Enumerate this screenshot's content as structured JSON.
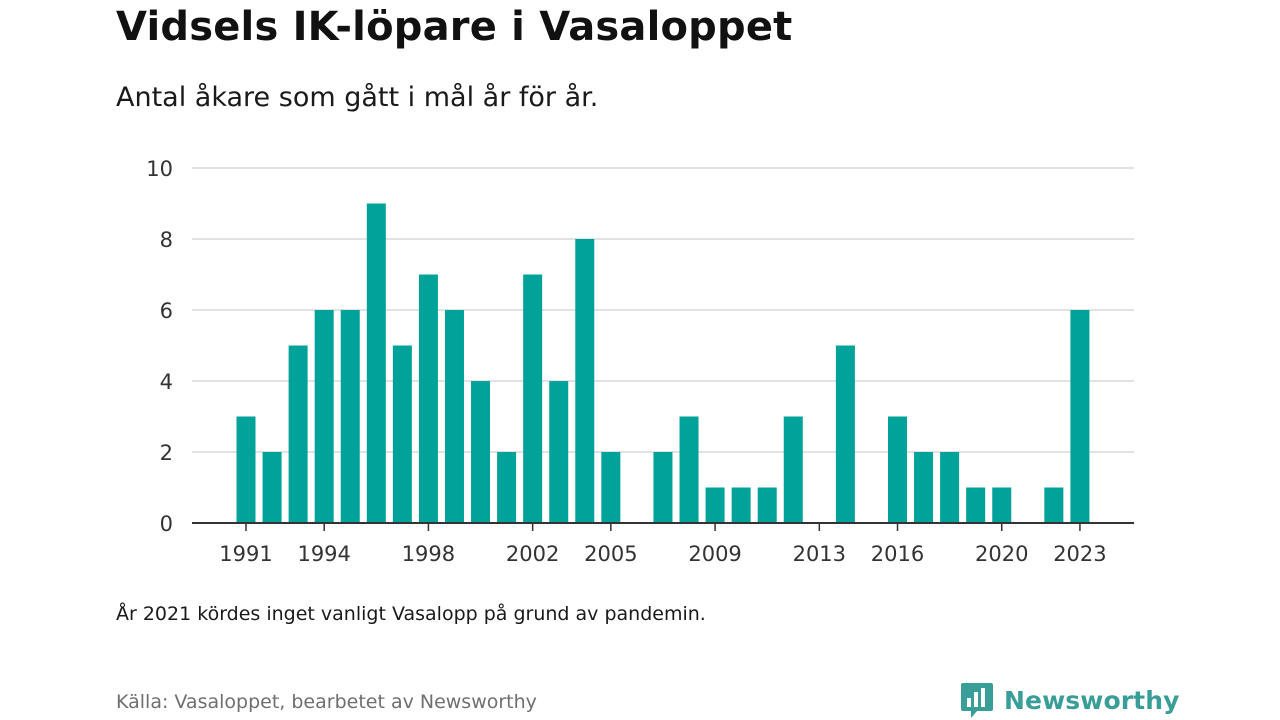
{
  "header": {
    "title": "Vidsels IK-löpare i Vasaloppet",
    "subtitle": "Antal åkare som gått i mål år för år."
  },
  "footer": {
    "note": "År 2021 kördes inget vanligt Vasalopp på grund av pandemin.",
    "source": "Källa: Vasaloppet, bearbetet av Newsworthy",
    "brand": "Newsworthy",
    "brand_icon": "bar-chart-speech-bubble-icon",
    "brand_color": "#3a9e98"
  },
  "chart_data": {
    "type": "bar",
    "title": "Vidsels IK-löpare i Vasaloppet",
    "subtitle": "Antal åkare som gått i mål år för år.",
    "xlabel": "",
    "ylabel": "",
    "ylim": [
      0,
      10
    ],
    "yticks": [
      0,
      2,
      4,
      6,
      8,
      10
    ],
    "xticks": [
      "1991",
      "1994",
      "1998",
      "2002",
      "2005",
      "2009",
      "2013",
      "2016",
      "2020",
      "2023"
    ],
    "grid": true,
    "bar_color": "#00a29a",
    "categories": [
      "1991",
      "1992",
      "1993",
      "1994",
      "1995",
      "1996",
      "1997",
      "1998",
      "1999",
      "2000",
      "2001",
      "2002",
      "2003",
      "2004",
      "2005",
      "2006",
      "2007",
      "2008",
      "2009",
      "2010",
      "2011",
      "2012",
      "2013",
      "2014",
      "2015",
      "2016",
      "2017",
      "2018",
      "2019",
      "2020",
      "2021",
      "2022",
      "2023"
    ],
    "values": [
      3,
      2,
      5,
      6,
      6,
      9,
      5,
      7,
      6,
      4,
      2,
      7,
      4,
      8,
      2,
      0,
      2,
      3,
      1,
      1,
      1,
      3,
      0,
      5,
      0,
      3,
      2,
      2,
      1,
      1,
      0,
      1,
      6
    ]
  }
}
